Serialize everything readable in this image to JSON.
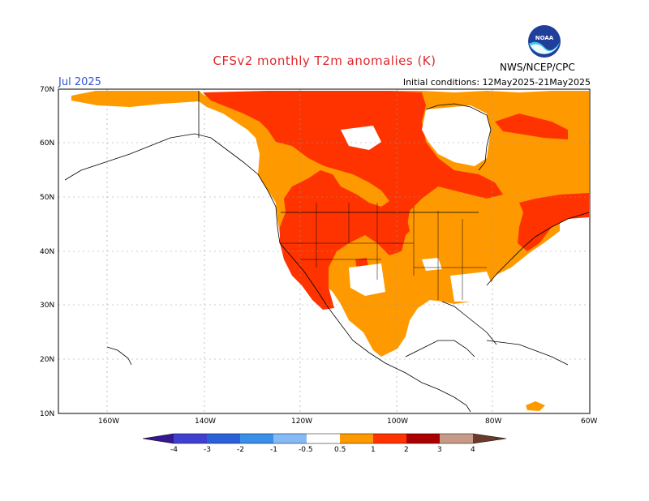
{
  "header": {
    "title": "CFSv2 monthly T2m anomalies (K)",
    "month": "Jul 2025",
    "initial_conditions": "Initial conditions: 12May2025-21May2025",
    "agency": "NWS/NCEP/CPC",
    "logo_text": "NOAA"
  },
  "axes": {
    "lat_labels": [
      "70N",
      "60N",
      "50N",
      "40N",
      "30N",
      "20N",
      "10N"
    ],
    "lon_labels": [
      "160W",
      "140W",
      "120W",
      "100W",
      "80W",
      "60W"
    ]
  },
  "colorbar": {
    "labels": [
      "-4",
      "-3",
      "-2",
      "-1",
      "-0.5",
      "0.5",
      "1",
      "2",
      "3",
      "4"
    ],
    "colors": {
      "lt_-4": "#35188f",
      "n4_n3": "#4040d0",
      "n3_n2": "#2a60d8",
      "n2_n1": "#3a90e8",
      "n1_n05": "#86baf4",
      "n05_05": "#ffffff",
      "p05_1": "#ff9900",
      "p1_2": "#ff3300",
      "p2_3": "#aa0000",
      "p3_4": "#c79a88",
      "gt_4": "#6b3a2a"
    }
  },
  "map_colors": {
    "anomaly_05_1": "#ff9900",
    "anomaly_1_2": "#ff3300",
    "coastline": "#000000"
  }
}
